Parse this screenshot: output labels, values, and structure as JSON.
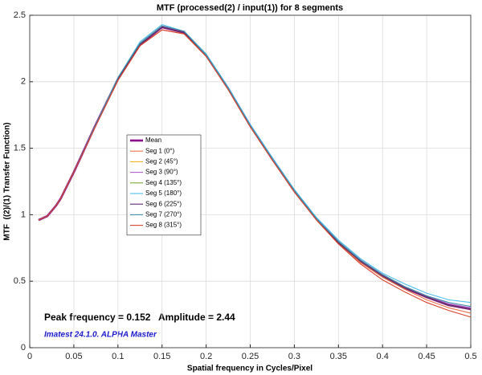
{
  "chart_data": {
    "type": "line",
    "title": "MTF (processed(2) / input(1)) for 8 segments",
    "x_label": "Spatial frequency in Cycles/Pixel",
    "y_label": "MTF  ((2)/(1) Transfer Function)",
    "annotations": [
      "Peak frequency = 0.152   Amplitude = 2.44",
      "Imatest 24.1.0. ALPHA Master"
    ],
    "x": [
      0.01,
      0.02,
      0.03,
      0.035,
      0.05,
      0.075,
      0.1,
      0.125,
      0.15,
      0.175,
      0.2,
      0.225,
      0.25,
      0.275,
      0.3,
      0.325,
      0.35,
      0.375,
      0.4,
      0.425,
      0.45,
      0.475,
      0.5
    ],
    "series": [
      {
        "name": "Mean",
        "color": "#8b008b",
        "values": [
          0.96,
          0.99,
          1.07,
          1.12,
          1.32,
          1.68,
          2.02,
          2.28,
          2.41,
          2.37,
          2.2,
          1.95,
          1.67,
          1.42,
          1.18,
          0.97,
          0.79,
          0.65,
          0.54,
          0.45,
          0.38,
          0.32,
          0.29
        ]
      },
      {
        "name": "Seg 1 (0°)",
        "color": "#e8744a",
        "values": [
          0.96,
          0.99,
          1.07,
          1.12,
          1.32,
          1.67,
          2.01,
          2.27,
          2.39,
          2.36,
          2.2,
          1.95,
          1.67,
          1.42,
          1.18,
          0.97,
          0.79,
          0.64,
          0.53,
          0.44,
          0.36,
          0.3,
          0.26
        ]
      },
      {
        "name": "Seg 2 (45°)",
        "color": "#edb120",
        "values": [
          0.96,
          0.99,
          1.07,
          1.12,
          1.32,
          1.68,
          2.02,
          2.29,
          2.42,
          2.38,
          2.21,
          1.95,
          1.67,
          1.42,
          1.18,
          0.97,
          0.79,
          0.65,
          0.54,
          0.45,
          0.38,
          0.32,
          0.29
        ]
      },
      {
        "name": "Seg 3 (90°)",
        "color": "#b05ccf",
        "values": [
          0.96,
          0.99,
          1.07,
          1.12,
          1.32,
          1.68,
          2.03,
          2.29,
          2.42,
          2.38,
          2.2,
          1.95,
          1.67,
          1.42,
          1.18,
          0.97,
          0.8,
          0.66,
          0.55,
          0.46,
          0.39,
          0.33,
          0.3
        ]
      },
      {
        "name": "Seg 4 (135°)",
        "color": "#77ac30",
        "values": [
          0.96,
          0.99,
          1.07,
          1.12,
          1.32,
          1.68,
          2.02,
          2.28,
          2.41,
          2.37,
          2.2,
          1.95,
          1.67,
          1.42,
          1.18,
          0.97,
          0.79,
          0.65,
          0.54,
          0.45,
          0.38,
          0.32,
          0.29
        ]
      },
      {
        "name": "Seg 5 (180°)",
        "color": "#4dbeee",
        "values": [
          0.96,
          0.99,
          1.07,
          1.12,
          1.32,
          1.68,
          2.03,
          2.3,
          2.43,
          2.38,
          2.21,
          1.96,
          1.68,
          1.43,
          1.19,
          0.98,
          0.81,
          0.67,
          0.56,
          0.48,
          0.41,
          0.36,
          0.34
        ]
      },
      {
        "name": "Seg 6 (225°)",
        "color": "#5a2a6e",
        "values": [
          0.96,
          0.99,
          1.07,
          1.12,
          1.32,
          1.68,
          2.02,
          2.28,
          2.41,
          2.37,
          2.2,
          1.95,
          1.67,
          1.42,
          1.18,
          0.97,
          0.79,
          0.65,
          0.54,
          0.45,
          0.38,
          0.32,
          0.29
        ]
      },
      {
        "name": "Seg 7 (270°)",
        "color": "#3f8fa8",
        "values": [
          0.96,
          0.99,
          1.07,
          1.12,
          1.32,
          1.68,
          2.03,
          2.29,
          2.42,
          2.38,
          2.2,
          1.95,
          1.67,
          1.42,
          1.18,
          0.97,
          0.8,
          0.66,
          0.55,
          0.46,
          0.39,
          0.34,
          0.31
        ]
      },
      {
        "name": "Seg 8 (315°)",
        "color": "#d9402a",
        "values": [
          0.96,
          0.99,
          1.07,
          1.12,
          1.32,
          1.67,
          2.01,
          2.27,
          2.39,
          2.36,
          2.19,
          1.94,
          1.66,
          1.41,
          1.17,
          0.96,
          0.78,
          0.63,
          0.51,
          0.42,
          0.34,
          0.28,
          0.23
        ]
      }
    ],
    "xlim": [
      0,
      0.5
    ],
    "ylim": [
      0,
      2.5
    ],
    "xticks": [
      0,
      0.05,
      0.1,
      0.15,
      0.2,
      0.25,
      0.3,
      0.35,
      0.4,
      0.45,
      0.5
    ],
    "yticks": [
      0,
      0.5,
      1,
      1.5,
      2,
      2.5
    ],
    "grid": true
  }
}
